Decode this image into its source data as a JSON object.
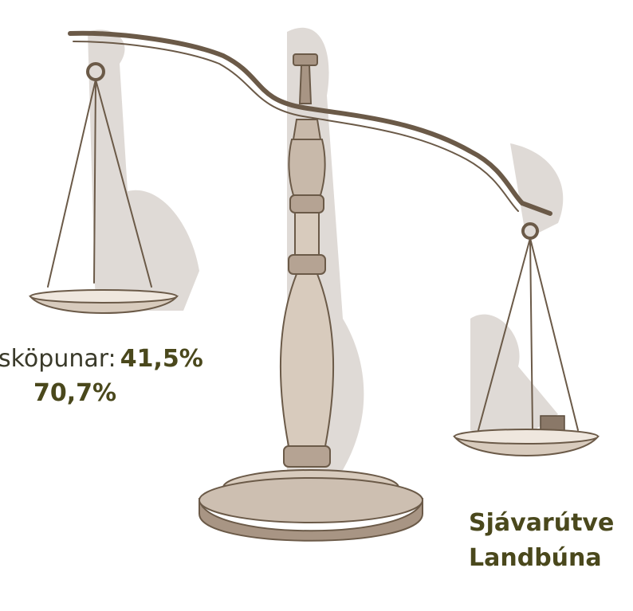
{
  "left_label": {
    "prefix": "sköpunar:",
    "value": "41,5%",
    "line2": "70,7%"
  },
  "right_label": {
    "line1": "Sjávarútve",
    "line2": "Landbúna"
  }
}
